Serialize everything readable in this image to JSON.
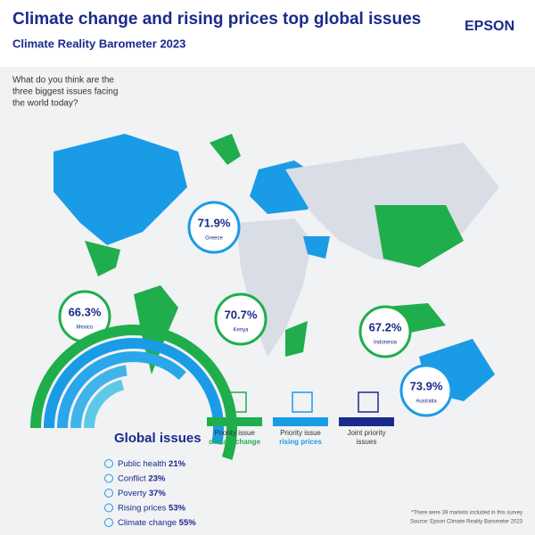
{
  "header": {
    "title": "Climate change and rising prices top global issues",
    "subtitle": "Climate Reality Barometer 2023",
    "brand": "EPSON"
  },
  "question": [
    "What do you think are the",
    "three biggest issues facing",
    "the world today?"
  ],
  "callouts": [
    {
      "value": "71.9%",
      "country": "Greece"
    },
    {
      "value": "66.3%",
      "country": "Mexico"
    },
    {
      "value": "70.7%",
      "country": "Kenya"
    },
    {
      "value": "67.2%",
      "country": "Indonesia"
    },
    {
      "value": "73.9%",
      "country": "Australia"
    }
  ],
  "legend": [
    {
      "lines": [
        "Priority issue",
        "climate change"
      ],
      "color": "#1fae4b"
    },
    {
      "lines": [
        "Priority issue",
        "rising prices"
      ],
      "color": "#1a9be6"
    },
    {
      "lines": [
        "Joint priority",
        "issues"
      ],
      "color": "#1a2a8c"
    }
  ],
  "chart_data": {
    "type": "radial-bar",
    "title": "Global issues",
    "categories": [
      "Public health",
      "Conflict",
      "Poverty",
      "Rising prices",
      "Climate change"
    ],
    "values": [
      21,
      23,
      37,
      53,
      55
    ],
    "value_labels": [
      "21%",
      "23%",
      "37%",
      "53%",
      "55%"
    ],
    "colors": [
      "#5ec8e8",
      "#3fb4ea",
      "#2aa6ea",
      "#1a9be6",
      "#1fae4b"
    ]
  },
  "footnotes": [
    "*There were 39 markets included in this survey",
    "Source: Epson Climate Reality Barometer 2023"
  ]
}
